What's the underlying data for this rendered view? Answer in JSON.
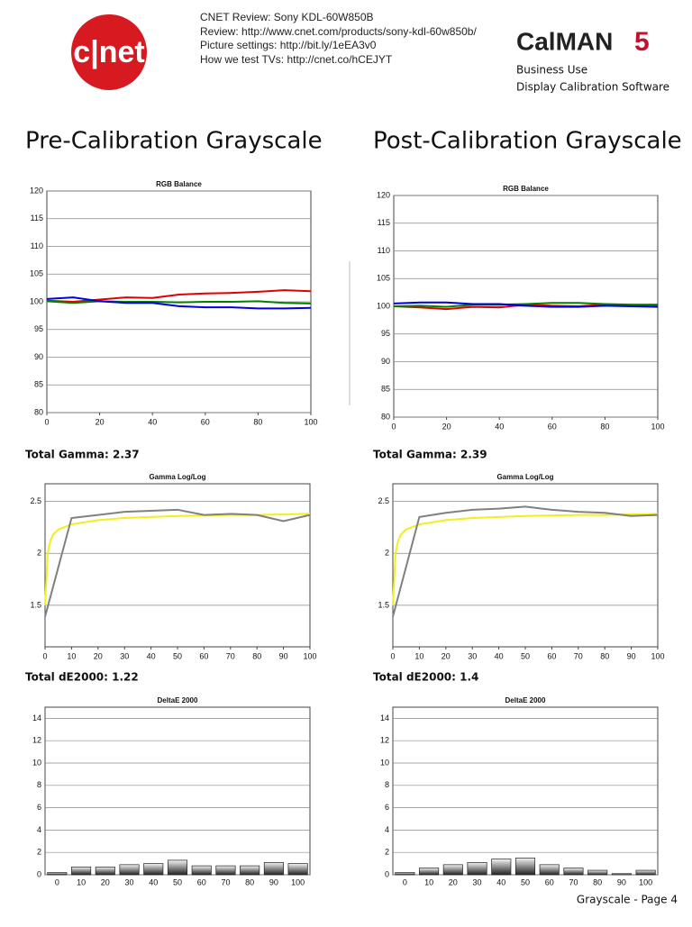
{
  "header": {
    "logo": "c|net",
    "lines": [
      "CNET Review: Sony KDL-60W850B",
      "Review: http://www.cnet.com/products/sony-kdl-60w850b/",
      "Picture settings: http://bit.ly/1eEA3v0",
      "How we test TVs: http://cnet.co/hCEJYT"
    ],
    "brand": "CalMAN",
    "brand_num": "5",
    "brand_lines": [
      "Business Use",
      "Display Calibration Software"
    ]
  },
  "sections": [
    {
      "title": "Pre-Calibration Grayscale",
      "gamma_total": "Total Gamma: 2.37",
      "de_total": "Total dE2000: 1.22"
    },
    {
      "title": "Post-Calibration Grayscale",
      "gamma_total": "Total Gamma: 2.39",
      "de_total": "Total dE2000: 1.4"
    }
  ],
  "footer": "Grayscale - Page 4",
  "chart_data": [
    {
      "type": "line",
      "title": "RGB Balance",
      "x": [
        0,
        10,
        20,
        30,
        40,
        50,
        60,
        70,
        80,
        90,
        100
      ],
      "xlim": [
        0,
        100
      ],
      "xticks": [
        0,
        20,
        40,
        60,
        80,
        100
      ],
      "ylim": [
        80,
        120
      ],
      "yticks": [
        80,
        85,
        90,
        95,
        100,
        105,
        110,
        115,
        120
      ],
      "grid": true,
      "series": [
        {
          "color": "#e00000",
          "values": [
            100.2,
            100.0,
            100.4,
            100.8,
            100.7,
            101.3,
            101.5,
            101.6,
            101.8,
            102.1,
            101.9
          ]
        },
        {
          "color": "#008000",
          "values": [
            100.1,
            99.8,
            100.1,
            100.0,
            100.0,
            99.9,
            100.0,
            100.0,
            100.1,
            99.8,
            99.7
          ]
        },
        {
          "color": "#0000e0",
          "values": [
            100.5,
            100.8,
            100.1,
            99.8,
            99.8,
            99.2,
            99.0,
            99.0,
            98.8,
            98.8,
            98.9
          ]
        }
      ]
    },
    {
      "type": "line",
      "title": "RGB Balance",
      "x": [
        0,
        10,
        20,
        30,
        40,
        50,
        60,
        70,
        80,
        90,
        100
      ],
      "xlim": [
        0,
        100
      ],
      "xticks": [
        0,
        20,
        40,
        60,
        80,
        100
      ],
      "ylim": [
        80,
        120
      ],
      "yticks": [
        80,
        85,
        90,
        95,
        100,
        105,
        110,
        115,
        120
      ],
      "grid": true,
      "series": [
        {
          "color": "#e00000",
          "values": [
            100.0,
            99.8,
            99.5,
            99.9,
            99.8,
            100.3,
            100.1,
            100.0,
            100.3,
            100.1,
            100.2
          ]
        },
        {
          "color": "#008000",
          "values": [
            100.0,
            100.1,
            99.9,
            100.3,
            100.3,
            100.4,
            100.6,
            100.6,
            100.4,
            100.3,
            100.3
          ]
        },
        {
          "color": "#0000e0",
          "values": [
            100.5,
            100.7,
            100.7,
            100.4,
            100.4,
            100.1,
            99.9,
            99.9,
            100.1,
            100.0,
            99.9
          ]
        }
      ]
    },
    {
      "type": "line",
      "title": "Gamma Log/Log",
      "x": [
        0,
        10,
        20,
        30,
        40,
        50,
        60,
        70,
        80,
        90,
        100
      ],
      "xlim": [
        0,
        100
      ],
      "xticks": [
        0,
        10,
        20,
        30,
        40,
        50,
        60,
        70,
        80,
        90,
        100
      ],
      "ylim": [
        1.1,
        2.67
      ],
      "yticks": [
        1.5,
        2,
        2.5
      ],
      "grid": true,
      "series": [
        {
          "color": "#f2ee20",
          "x": [
            0,
            1,
            2,
            3,
            5,
            10,
            20,
            30,
            40,
            50,
            60,
            70,
            80,
            90,
            100
          ],
          "values": [
            1.5,
            2.0,
            2.12,
            2.18,
            2.23,
            2.28,
            2.32,
            2.34,
            2.35,
            2.36,
            2.365,
            2.37,
            2.37,
            2.375,
            2.38
          ]
        },
        {
          "color": "#808080",
          "values": [
            1.39,
            2.34,
            2.37,
            2.4,
            2.41,
            2.42,
            2.37,
            2.38,
            2.37,
            2.31,
            2.37
          ]
        }
      ]
    },
    {
      "type": "line",
      "title": "Gamma Log/Log",
      "x": [
        0,
        10,
        20,
        30,
        40,
        50,
        60,
        70,
        80,
        90,
        100
      ],
      "xlim": [
        0,
        100
      ],
      "xticks": [
        0,
        10,
        20,
        30,
        40,
        50,
        60,
        70,
        80,
        90,
        100
      ],
      "ylim": [
        1.1,
        2.67
      ],
      "yticks": [
        1.5,
        2,
        2.5
      ],
      "grid": true,
      "series": [
        {
          "color": "#f2ee20",
          "x": [
            0,
            1,
            2,
            3,
            5,
            10,
            20,
            30,
            40,
            50,
            60,
            70,
            80,
            90,
            100
          ],
          "values": [
            1.5,
            2.0,
            2.12,
            2.18,
            2.23,
            2.28,
            2.32,
            2.34,
            2.35,
            2.36,
            2.365,
            2.37,
            2.37,
            2.375,
            2.38
          ]
        },
        {
          "color": "#808080",
          "values": [
            1.39,
            2.35,
            2.39,
            2.42,
            2.43,
            2.45,
            2.42,
            2.4,
            2.39,
            2.36,
            2.37
          ]
        }
      ]
    },
    {
      "type": "bar",
      "title": "DeltaE 2000",
      "categories": [
        "0",
        "10",
        "20",
        "30",
        "40",
        "50",
        "60",
        "70",
        "80",
        "90",
        "100"
      ],
      "values": [
        0.2,
        0.7,
        0.7,
        0.9,
        1.0,
        1.3,
        0.8,
        0.8,
        0.8,
        1.1,
        1.0
      ],
      "ylim": [
        0,
        15
      ],
      "yticks": [
        0,
        2,
        4,
        6,
        8,
        10,
        12,
        14
      ],
      "grid": true
    },
    {
      "type": "bar",
      "title": "DeltaE 2000",
      "categories": [
        "0",
        "10",
        "20",
        "30",
        "40",
        "50",
        "60",
        "70",
        "80",
        "90",
        "100"
      ],
      "values": [
        0.2,
        0.6,
        0.9,
        1.1,
        1.4,
        1.5,
        0.9,
        0.6,
        0.4,
        0.1,
        0.4
      ],
      "ylim": [
        0,
        15
      ],
      "yticks": [
        0,
        2,
        4,
        6,
        8,
        10,
        12,
        14
      ],
      "grid": true
    }
  ]
}
